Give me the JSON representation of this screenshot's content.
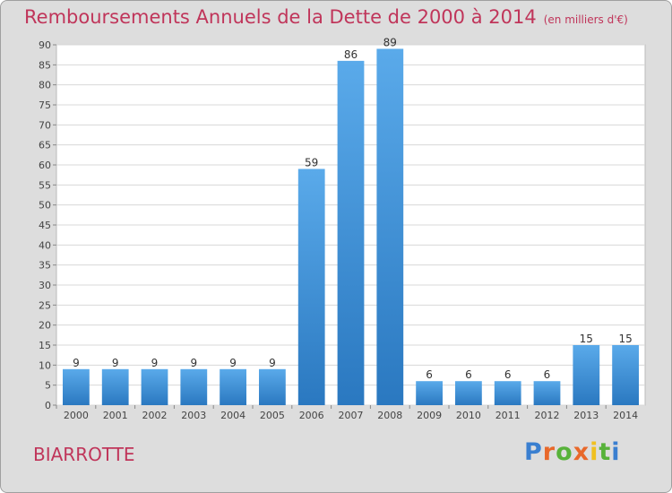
{
  "header": {
    "title": "Remboursements Annuels de la Dette de 2000 à 2014",
    "subtitle": "(en milliers d'€)"
  },
  "footer": {
    "town": "BIARROTTE",
    "logo_text": "Proxiti",
    "logo_colors": [
      "#3a7fd0",
      "#e8682a",
      "#57b23a",
      "#e8682a",
      "#f0c020",
      "#57b23a",
      "#3a7fd0"
    ]
  },
  "colors": {
    "bar_top": "#5aaaea",
    "bar_bottom": "#2a78c0",
    "accent": "#c0355a"
  },
  "chart_data": {
    "type": "bar",
    "title": "Remboursements Annuels de la Dette de 2000 à 2014",
    "subtitle": "(en milliers d'€)",
    "categories": [
      "2000",
      "2001",
      "2002",
      "2003",
      "2004",
      "2005",
      "2006",
      "2007",
      "2008",
      "2009",
      "2010",
      "2011",
      "2012",
      "2013",
      "2014"
    ],
    "values": [
      9,
      9,
      9,
      9,
      9,
      9,
      59,
      86,
      89,
      6,
      6,
      6,
      6,
      15,
      15
    ],
    "ylim": [
      0,
      90
    ],
    "yticks": [
      0,
      5,
      10,
      15,
      20,
      25,
      30,
      35,
      40,
      45,
      50,
      55,
      60,
      65,
      70,
      75,
      80,
      85,
      90
    ],
    "grid": true,
    "legend": "none"
  }
}
